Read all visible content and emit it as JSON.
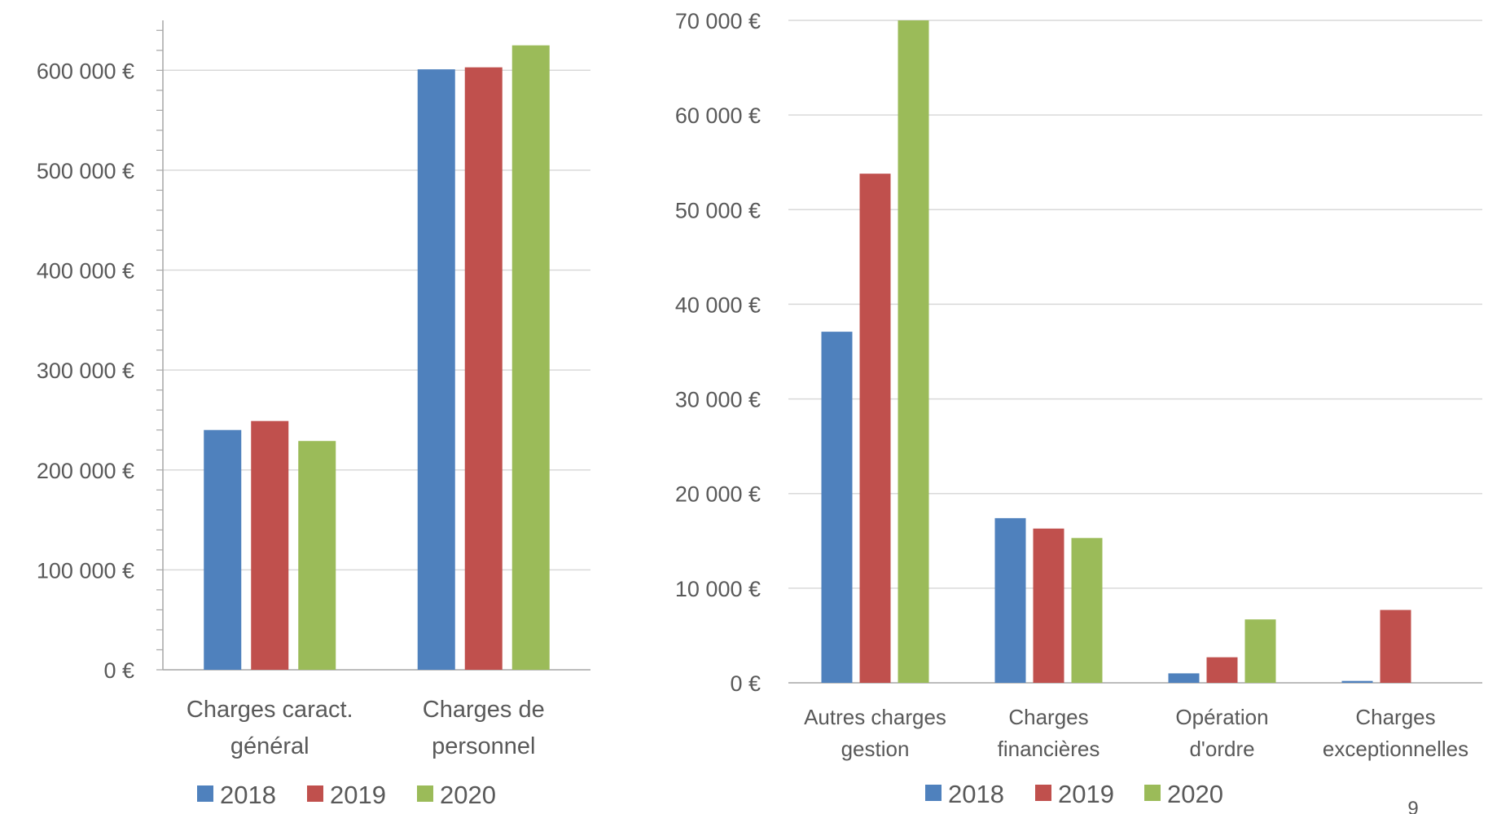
{
  "colors": {
    "2018": "#4f81bd",
    "2019": "#c0504d",
    "2020": "#9bbb59",
    "grid": "#d9d9d9",
    "axis": "#a6a6a6",
    "text": "#595959"
  },
  "page_number": "9",
  "chart_data": [
    {
      "type": "bar",
      "categories": [
        [
          "Charges caract.",
          "général"
        ],
        [
          "Charges de",
          "personnel"
        ]
      ],
      "y_tick_labels": [
        "0 €",
        "100 000 €",
        "200 000 €",
        "300 000 €",
        "400 000 €",
        "500 000 €",
        "600 000 €"
      ],
      "ylim": [
        0,
        650000
      ],
      "grid": true,
      "legend_position": "bottom",
      "series": [
        {
          "name": "2018",
          "values": [
            240000,
            601000
          ]
        },
        {
          "name": "2019",
          "values": [
            249000,
            603000
          ]
        },
        {
          "name": "2020",
          "values": [
            229000,
            625000
          ]
        }
      ]
    },
    {
      "type": "bar",
      "categories": [
        [
          "Autres charges",
          "gestion"
        ],
        [
          "Charges",
          "financières"
        ],
        [
          "Opération",
          "d'ordre"
        ],
        [
          "Charges",
          "exceptionnelles"
        ]
      ],
      "y_tick_labels": [
        "0 €",
        "10 000 €",
        "20 000 €",
        "30 000 €",
        "40 000 €",
        "50 000 €",
        "60 000 €",
        "70 000 €"
      ],
      "ylim": [
        0,
        70000
      ],
      "grid": true,
      "legend_position": "bottom",
      "series": [
        {
          "name": "2018",
          "values": [
            37100,
            17400,
            1000,
            200
          ]
        },
        {
          "name": "2019",
          "values": [
            53800,
            16300,
            2700,
            7700
          ]
        },
        {
          "name": "2020",
          "values": [
            70000,
            15300,
            6700,
            0
          ]
        }
      ]
    }
  ]
}
